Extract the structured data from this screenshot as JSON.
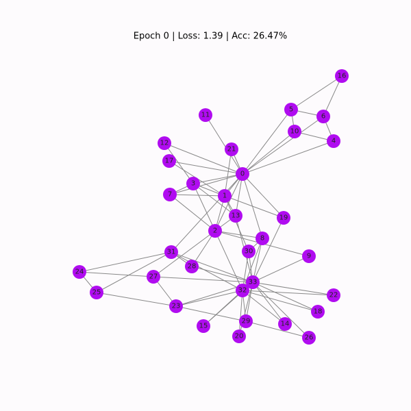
{
  "title": "Epoch 0 | Loss: 1.39 | Acc: 26.47%",
  "nodes": [
    "0",
    "1",
    "2",
    "3",
    "4",
    "5",
    "6",
    "7",
    "8",
    "9",
    "10",
    "11",
    "12",
    "13",
    "14",
    "15",
    "16",
    "17",
    "18",
    "19",
    "20",
    "21",
    "22",
    "23",
    "24",
    "25",
    "26",
    "27",
    "28",
    "29",
    "30",
    "31",
    "32",
    "33"
  ]
}
